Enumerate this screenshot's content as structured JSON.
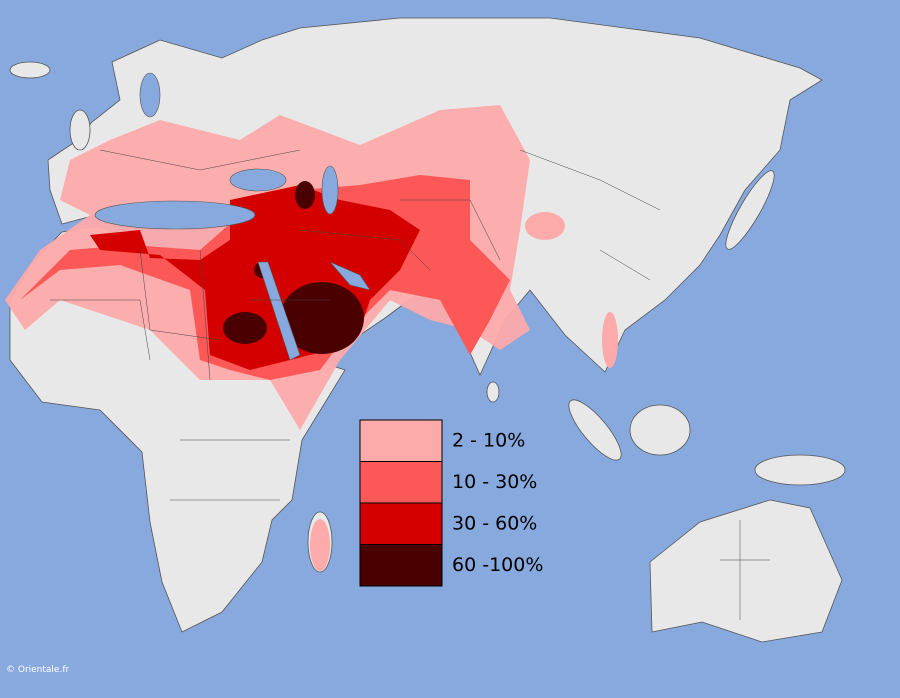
{
  "legend": {
    "items": [
      {
        "label": "2 - 10%",
        "color": "#fdaaaa"
      },
      {
        "label": "10 - 30%",
        "color": "#fc5858"
      },
      {
        "label": "30 - 60%",
        "color": "#d40000"
      },
      {
        "label": "60 -100%",
        "color": "#4a0000"
      }
    ]
  },
  "credit": "© Orientale.fr"
}
